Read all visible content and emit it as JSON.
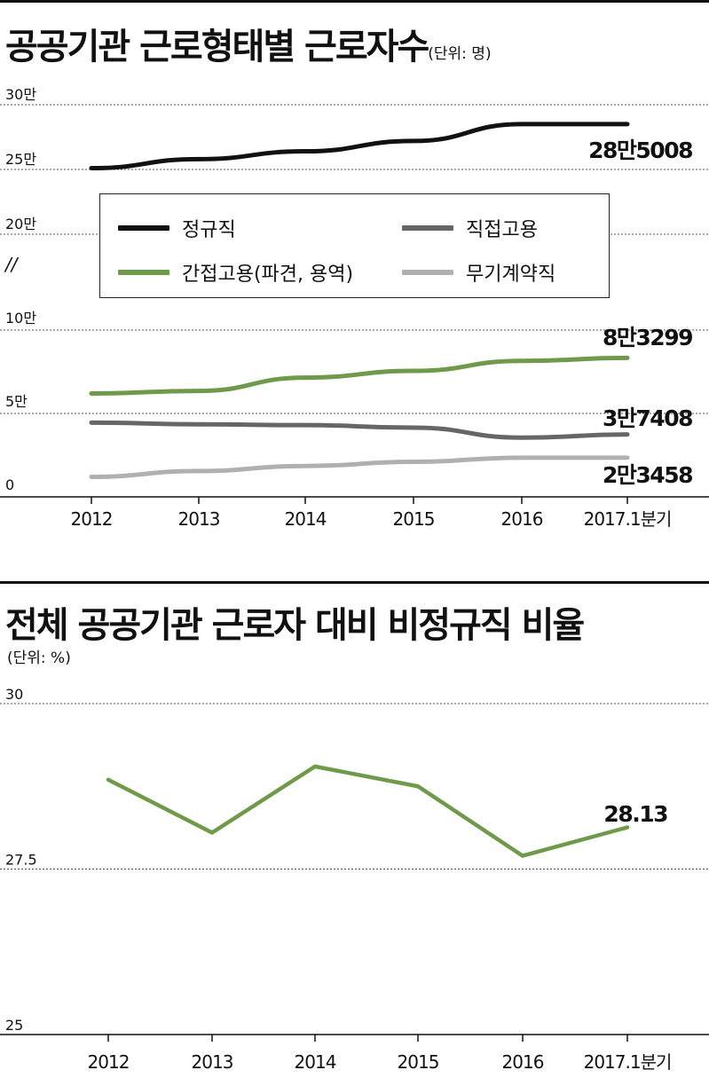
{
  "chart1": {
    "title": "공공기관 근로형태별 근로자수",
    "unit": "(단위: 명)",
    "y_ticks_upper": [
      "30만",
      "25만",
      "20만"
    ],
    "y_ticks_lower": [
      "10만",
      "5만",
      "0"
    ],
    "break_mark": "//",
    "categories": [
      "2012",
      "2013",
      "2014",
      "2015",
      "2016",
      "2017.1분기"
    ],
    "legend": [
      "정규직",
      "직접고용",
      "간접고용(파견, 용역)",
      "무기계약직"
    ]
  },
  "chart2": {
    "title": "전체 공공기관 근로자 대비 비정규직 비율",
    "unit": "(단위: %)",
    "y_ticks": [
      "30",
      "27.5",
      "25"
    ],
    "categories": [
      "2012",
      "2013",
      "2014",
      "2015",
      "2016",
      "2017.1분기"
    ]
  },
  "colors": {
    "regular": "#111111",
    "direct": "#666666",
    "indirect": "#6e9a4a",
    "indefinite": "#b0b0b0",
    "ratio": "#6e9a4a",
    "panel": "#efefef"
  },
  "chart_data": [
    {
      "type": "line",
      "title": "공공기관 근로형태별 근로자수",
      "unit": "명",
      "categories": [
        "2012",
        "2013",
        "2014",
        "2015",
        "2016",
        "2017.1분기"
      ],
      "y_scale": "broken axis: 0–10만 and 20만–30만",
      "grid": true,
      "legend_position": "inside, upper middle",
      "series": [
        {
          "name": "정규직",
          "values": [
            251000,
            258000,
            264000,
            272000,
            285000,
            285008
          ],
          "end_label": "28만5008"
        },
        {
          "name": "직접고용",
          "values": [
            44500,
            43500,
            43000,
            41500,
            35500,
            37408
          ],
          "end_label": "3만7408"
        },
        {
          "name": "간접고용(파견, 용역)",
          "values": [
            62000,
            63500,
            71500,
            75500,
            81500,
            83299
          ],
          "end_label": "8만3299"
        },
        {
          "name": "무기계약직",
          "values": [
            12000,
            15500,
            18500,
            21000,
            23500,
            23458
          ],
          "end_label": "2만3458"
        }
      ]
    },
    {
      "type": "line",
      "title": "전체 공공기관 근로자 대비 비정규직 비율",
      "unit": "%",
      "categories": [
        "2012",
        "2013",
        "2014",
        "2015",
        "2016",
        "2017.1분기"
      ],
      "ylim": [
        25,
        30
      ],
      "grid": true,
      "series": [
        {
          "values": [
            28.85,
            28.05,
            29.05,
            28.75,
            27.7,
            28.13
          ],
          "end_label": "28.13"
        }
      ]
    }
  ]
}
